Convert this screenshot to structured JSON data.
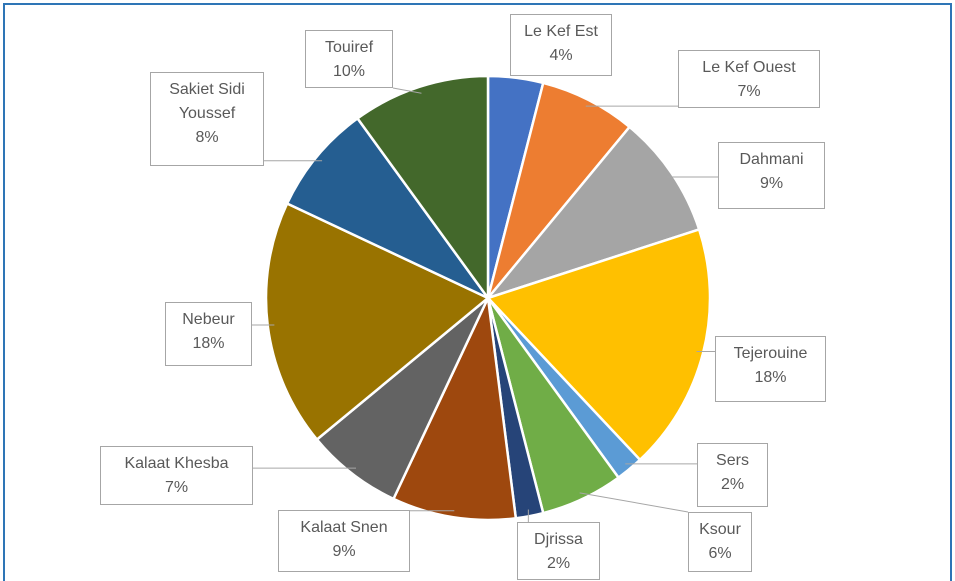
{
  "chart_data": {
    "type": "pie",
    "categories": [
      "Le Kef Est",
      "Le Kef Ouest",
      "Dahmani",
      "Tejerouine",
      "Sers",
      "Ksour",
      "Djrissa",
      "Kalaat Snen",
      "Kalaat Khesba",
      "Nebeur",
      "Sakiet Sidi Youssef",
      "Touiref"
    ],
    "values": [
      4,
      7,
      9,
      18,
      2,
      6,
      2,
      9,
      7,
      18,
      8,
      10
    ],
    "value_labels": [
      "4%",
      "7%",
      "9%",
      "18%",
      "2%",
      "6%",
      "2%",
      "9%",
      "7%",
      "18%",
      "8%",
      "10%"
    ],
    "colors": [
      "#4472c4",
      "#ed7d31",
      "#a5a5a5",
      "#ffc000",
      "#5b9bd5",
      "#70ad47",
      "#264478",
      "#9e480e",
      "#636363",
      "#997300",
      "#255e91",
      "#43682b"
    ]
  }
}
